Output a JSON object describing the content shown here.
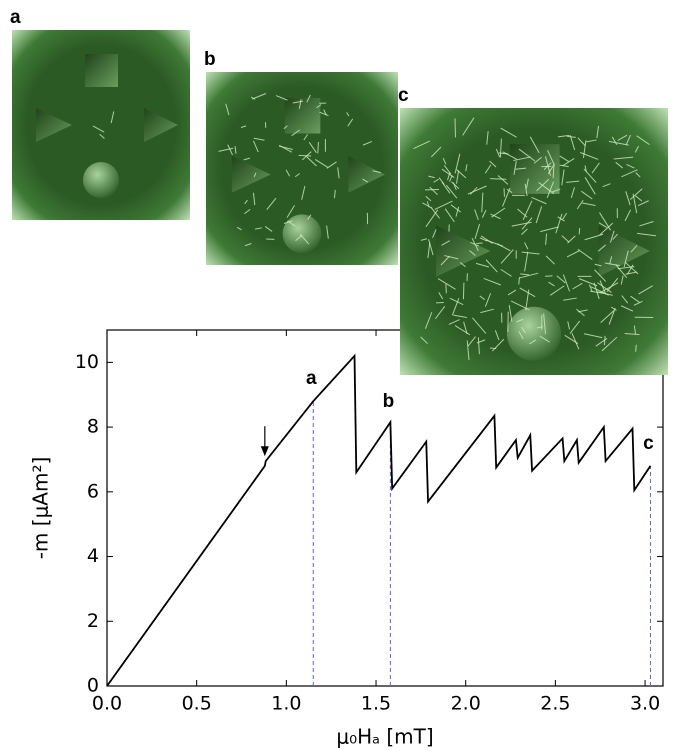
{
  "chart_data": {
    "type": "line",
    "xlabel": "μ₀Hₐ [mT]",
    "ylabel": "-m [μAm²]",
    "xlim": [
      0,
      3.1
    ],
    "ylim": [
      0,
      11
    ],
    "xticks": [
      {
        "value": 0,
        "label": "0.0"
      },
      {
        "value": 0.5,
        "label": "0.5"
      },
      {
        "value": 1,
        "label": "1.0"
      },
      {
        "value": 1.5,
        "label": "1.5"
      },
      {
        "value": 2,
        "label": "2.0"
      },
      {
        "value": 2.5,
        "label": "2.5"
      },
      {
        "value": 3,
        "label": "3.0"
      }
    ],
    "yticks": [
      0,
      2,
      4,
      6,
      8,
      10
    ],
    "color": "#000000",
    "x": [
      0,
      0.88,
      0.885,
      1.15,
      1.38,
      1.39,
      1.58,
      1.59,
      1.78,
      1.79,
      2.16,
      2.17,
      2.28,
      2.29,
      2.36,
      2.37,
      2.54,
      2.55,
      2.62,
      2.63,
      2.77,
      2.78,
      2.93,
      2.94,
      3.03
    ],
    "values": [
      0,
      6.8,
      6.95,
      8.8,
      10.2,
      6.6,
      8.15,
      6.1,
      7.55,
      5.7,
      8.35,
      6.75,
      7.6,
      7.05,
      7.75,
      6.65,
      7.65,
      6.95,
      7.6,
      6.9,
      8.0,
      6.95,
      7.95,
      6.05,
      6.8
    ],
    "markers": [
      {
        "x": 1.15,
        "y": 8.8,
        "label": "a"
      },
      {
        "x": 1.58,
        "y": 8.1,
        "label": "b"
      },
      {
        "x": 3.03,
        "y": 6.8,
        "label": "c"
      }
    ],
    "arrow": {
      "x": 0.88,
      "y": 7.1
    }
  },
  "panels": [
    {
      "label": "a"
    },
    {
      "label": "b"
    },
    {
      "label": "c"
    }
  ]
}
